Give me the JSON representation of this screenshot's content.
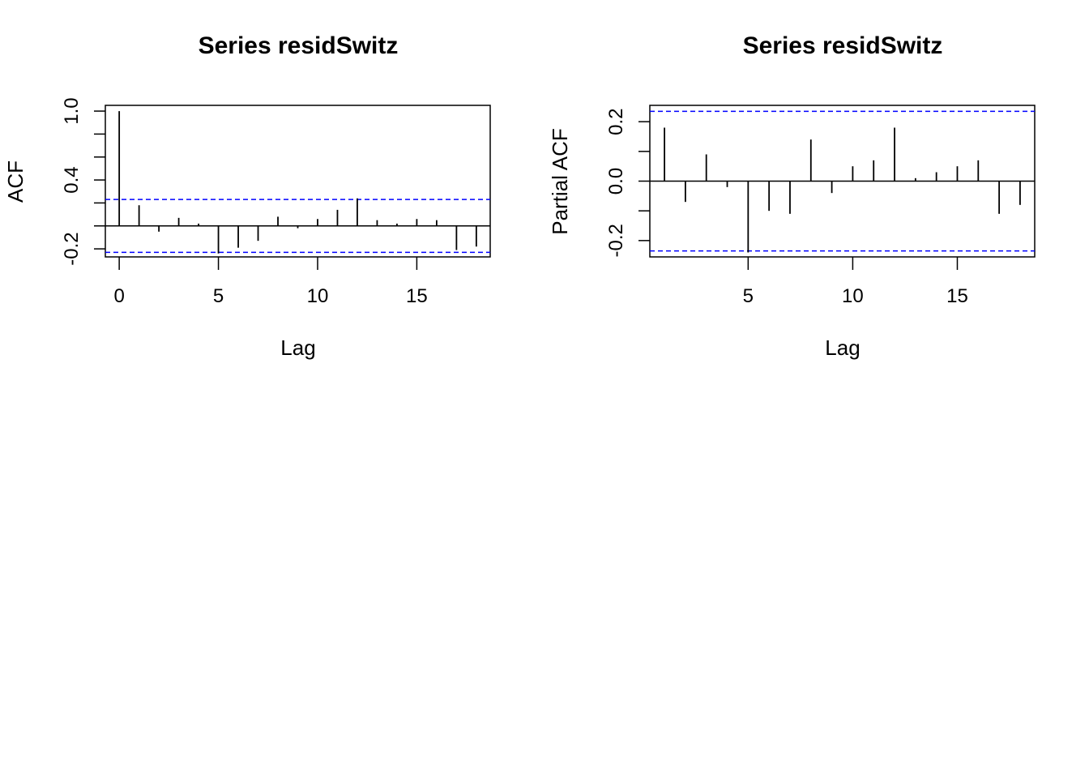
{
  "chart_data": [
    {
      "type": "bar",
      "title": "Series  residSwitz",
      "xlabel": "Lag",
      "ylabel": "ACF",
      "xlim": [
        -0.7,
        18.7
      ],
      "ylim": [
        -0.27,
        1.05
      ],
      "xticks": [
        0,
        5,
        10,
        15
      ],
      "xtick_labels": [
        "0",
        "5",
        "10",
        "15"
      ],
      "yticks": [
        -0.2,
        0.4,
        1.0
      ],
      "ytick_labels": [
        "-0.2",
        "0.4",
        "1.0"
      ],
      "yminor": [
        0.0,
        0.2,
        0.6,
        0.8
      ],
      "lags": [
        0,
        1,
        2,
        3,
        4,
        5,
        6,
        7,
        8,
        9,
        10,
        11,
        12,
        13,
        14,
        15,
        16,
        17,
        18
      ],
      "values": [
        1.0,
        0.18,
        -0.05,
        0.07,
        0.02,
        -0.24,
        -0.19,
        -0.13,
        0.08,
        -0.02,
        0.06,
        0.14,
        0.24,
        0.05,
        0.02,
        0.06,
        0.05,
        -0.21,
        -0.18
      ],
      "ci": 0.23,
      "zero_line": 0,
      "ci_color": "#0000ff",
      "bar_color": "#000000"
    },
    {
      "type": "bar",
      "title": "Series  residSwitz",
      "xlabel": "Lag",
      "ylabel": "Partial ACF",
      "xlim": [
        0.3,
        18.7
      ],
      "ylim": [
        -0.255,
        0.255
      ],
      "xticks": [
        5,
        10,
        15
      ],
      "xtick_labels": [
        "5",
        "10",
        "15"
      ],
      "yticks": [
        -0.2,
        0.0,
        0.2
      ],
      "ytick_labels": [
        "-0.2",
        "0.0",
        "0.2"
      ],
      "yminor": [
        -0.1,
        0.1
      ],
      "lags": [
        1,
        2,
        3,
        4,
        5,
        6,
        7,
        8,
        9,
        10,
        11,
        12,
        13,
        14,
        15,
        16,
        17,
        18
      ],
      "values": [
        0.18,
        -0.07,
        0.09,
        -0.02,
        -0.24,
        -0.1,
        -0.11,
        0.14,
        -0.04,
        0.05,
        0.07,
        0.18,
        0.01,
        0.03,
        0.05,
        0.07,
        -0.11,
        -0.08
      ],
      "ci": 0.235,
      "zero_line": 0,
      "ci_color": "#0000ff",
      "bar_color": "#000000"
    }
  ]
}
